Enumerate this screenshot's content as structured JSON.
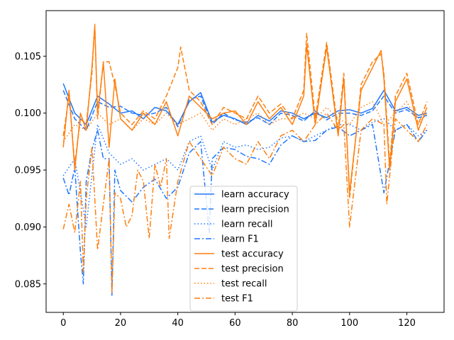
{
  "chart_data": {
    "type": "line",
    "xlim": [
      -6,
      133
    ],
    "ylim": [
      0.0825,
      0.109
    ],
    "x_ticks": [
      0,
      20,
      40,
      60,
      80,
      100,
      120
    ],
    "y_ticks": [
      0.085,
      0.09,
      0.095,
      0.1,
      0.105
    ],
    "x_tick_labels": [
      "0",
      "20",
      "40",
      "60",
      "80",
      "100",
      "120"
    ],
    "y_tick_labels": [
      "0.085",
      "0.090",
      "0.095",
      "0.100",
      "0.105"
    ],
    "grid": false,
    "legend_position": "bottom-center",
    "colors": {
      "learn": "#1f77ff",
      "test": "#ff7f0e",
      "axis": "#000000"
    },
    "legend": [
      {
        "label": "learn accuracy",
        "color": "#1f77ff",
        "style": "solid"
      },
      {
        "label": "learn precision",
        "color": "#1f77ff",
        "style": "dashed"
      },
      {
        "label": "learn recall",
        "color": "#1f77ff",
        "style": "dotted"
      },
      {
        "label": "learn F1",
        "color": "#1f77ff",
        "style": "dashdot"
      },
      {
        "label": "test accuracy",
        "color": "#ff7f0e",
        "style": "solid"
      },
      {
        "label": "test precision",
        "color": "#ff7f0e",
        "style": "dashed"
      },
      {
        "label": "test recall",
        "color": "#ff7f0e",
        "style": "dotted"
      },
      {
        "label": "test F1",
        "color": "#ff7f0e",
        "style": "dashdot"
      }
    ],
    "series": [
      {
        "label": "learn accuracy",
        "color": "#1f77ff",
        "style": "solid",
        "x": [
          0,
          4,
          8,
          12,
          16,
          20,
          24,
          28,
          32,
          36,
          40,
          44,
          48,
          52,
          56,
          60,
          64,
          68,
          72,
          76,
          80,
          84,
          88,
          92,
          96,
          100,
          104,
          108,
          112,
          116,
          120,
          124,
          127
        ],
        "y": [
          0.1026,
          0.1,
          0.099,
          0.1015,
          0.1008,
          0.1,
          0.1002,
          0.0995,
          0.1005,
          0.1002,
          0.099,
          0.101,
          0.1018,
          0.0992,
          0.0998,
          0.0995,
          0.099,
          0.0998,
          0.0993,
          0.1002,
          0.1,
          0.0995,
          0.1,
          0.0996,
          0.1002,
          0.1003,
          0.1,
          0.1004,
          0.102,
          0.1002,
          0.1005,
          0.0998,
          0.1
        ]
      },
      {
        "label": "learn precision",
        "color": "#1f77ff",
        "style": "dashed",
        "x": [
          0,
          4,
          8,
          12,
          16,
          20,
          24,
          28,
          32,
          36,
          40,
          44,
          48,
          52,
          56,
          60,
          64,
          68,
          72,
          76,
          80,
          84,
          88,
          92,
          96,
          100,
          104,
          108,
          112,
          116,
          120,
          124,
          127
        ],
        "y": [
          0.102,
          0.0995,
          0.0985,
          0.101,
          0.1005,
          0.1006,
          0.1,
          0.0998,
          0.1,
          0.1005,
          0.0988,
          0.1012,
          0.1015,
          0.099,
          0.1,
          0.0994,
          0.0992,
          0.0996,
          0.099,
          0.1,
          0.0998,
          0.0993,
          0.1002,
          0.0994,
          0.1,
          0.1,
          0.0998,
          0.1002,
          0.1015,
          0.1,
          0.1003,
          0.0996,
          0.0998
        ]
      },
      {
        "label": "learn recall",
        "color": "#1f77ff",
        "style": "dotted",
        "x": [
          0,
          4,
          8,
          12,
          16,
          20,
          24,
          28,
          32,
          36,
          40,
          44,
          48,
          52,
          56,
          60,
          64,
          68,
          72,
          76,
          80,
          84,
          88,
          92,
          96,
          100,
          104,
          108,
          112,
          116,
          120,
          124,
          127
        ],
        "y": [
          0.0945,
          0.096,
          0.09,
          0.099,
          0.0965,
          0.0955,
          0.096,
          0.095,
          0.0955,
          0.096,
          0.095,
          0.0975,
          0.098,
          0.095,
          0.0975,
          0.097,
          0.0972,
          0.0968,
          0.097,
          0.0978,
          0.098,
          0.0975,
          0.098,
          0.0985,
          0.099,
          0.099,
          0.0985,
          0.0992,
          0.0995,
          0.0985,
          0.099,
          0.098,
          0.0985
        ]
      },
      {
        "label": "learn F1",
        "color": "#1f77ff",
        "style": "dashdot",
        "x": [
          0,
          2,
          4,
          6,
          7,
          8,
          10,
          12,
          14,
          16,
          17,
          18,
          20,
          24,
          28,
          32,
          36,
          40,
          44,
          48,
          51,
          52,
          56,
          60,
          64,
          68,
          72,
          76,
          80,
          84,
          88,
          92,
          96,
          100,
          104,
          108,
          112,
          116,
          120,
          124,
          127
        ],
        "y": [
          0.0943,
          0.0928,
          0.0952,
          0.0878,
          0.085,
          0.094,
          0.0968,
          0.0985,
          0.096,
          0.096,
          0.084,
          0.095,
          0.0932,
          0.0922,
          0.0935,
          0.0942,
          0.0925,
          0.0935,
          0.0965,
          0.0975,
          0.0895,
          0.096,
          0.097,
          0.0968,
          0.0962,
          0.096,
          0.0955,
          0.0972,
          0.098,
          0.0975,
          0.0976,
          0.0985,
          0.0988,
          0.098,
          0.0985,
          0.099,
          0.093,
          0.0985,
          0.099,
          0.0975,
          0.0985
        ]
      },
      {
        "label": "test accuracy",
        "color": "#ff7f0e",
        "style": "solid",
        "x": [
          0,
          2,
          4,
          6,
          8,
          10,
          11,
          12,
          14,
          16,
          18,
          20,
          24,
          28,
          32,
          36,
          40,
          44,
          48,
          52,
          56,
          60,
          64,
          68,
          72,
          76,
          80,
          84,
          85,
          88,
          92,
          96,
          98,
          100,
          104,
          108,
          111,
          112,
          114,
          116,
          120,
          124,
          127
        ],
        "y": [
          0.097,
          0.102,
          0.095,
          0.1,
          0.0985,
          0.104,
          0.1076,
          0.1,
          0.1044,
          0.097,
          0.103,
          0.0995,
          0.0985,
          0.1,
          0.099,
          0.101,
          0.098,
          0.1015,
          0.1005,
          0.0995,
          0.1,
          0.1002,
          0.099,
          0.101,
          0.0995,
          0.1005,
          0.099,
          0.1015,
          0.106,
          0.099,
          0.1058,
          0.098,
          0.103,
          0.093,
          0.102,
          0.104,
          0.1055,
          0.103,
          0.095,
          0.101,
          0.103,
          0.0985,
          0.1005
        ]
      },
      {
        "label": "test precision",
        "color": "#ff7f0e",
        "style": "dashed",
        "x": [
          0,
          2,
          4,
          6,
          8,
          10,
          11,
          12,
          14,
          16,
          18,
          20,
          24,
          28,
          32,
          36,
          40,
          41,
          44,
          48,
          52,
          56,
          60,
          64,
          68,
          72,
          76,
          80,
          84,
          85,
          88,
          92,
          96,
          98,
          100,
          104,
          108,
          111,
          112,
          114,
          116,
          120,
          124,
          127
        ],
        "y": [
          0.098,
          0.1015,
          0.0955,
          0.0995,
          0.099,
          0.1035,
          0.1078,
          0.0995,
          0.1045,
          0.1045,
          0.1025,
          0.1,
          0.099,
          0.1002,
          0.0995,
          0.1015,
          0.104,
          0.1058,
          0.102,
          0.101,
          0.099,
          0.1005,
          0.1,
          0.0995,
          0.1015,
          0.1,
          0.1008,
          0.0995,
          0.102,
          0.107,
          0.0995,
          0.1062,
          0.0985,
          0.1035,
          0.0925,
          0.1025,
          0.1045,
          0.1052,
          0.1035,
          0.0955,
          0.1015,
          0.1035,
          0.099,
          0.101
        ]
      },
      {
        "label": "test recall",
        "color": "#ff7f0e",
        "style": "dotted",
        "x": [
          0,
          4,
          8,
          12,
          16,
          20,
          24,
          28,
          32,
          36,
          40,
          44,
          48,
          52,
          56,
          60,
          64,
          68,
          72,
          76,
          80,
          84,
          88,
          92,
          96,
          100,
          104,
          108,
          112,
          116,
          120,
          124,
          127
        ],
        "y": [
          0.0975,
          0.099,
          0.0985,
          0.1,
          0.099,
          0.0995,
          0.0985,
          0.0995,
          0.099,
          0.1,
          0.099,
          0.0995,
          0.1,
          0.0985,
          0.0995,
          0.099,
          0.0995,
          0.1,
          0.099,
          0.0995,
          0.0995,
          0.1,
          0.0995,
          0.1005,
          0.0995,
          0.099,
          0.1005,
          0.101,
          0.099,
          0.1,
          0.101,
          0.099,
          0.1
        ]
      },
      {
        "label": "test F1",
        "color": "#ff7f0e",
        "style": "dashdot",
        "x": [
          0,
          2,
          4,
          6,
          7,
          8,
          10,
          12,
          14,
          16,
          17,
          18,
          20,
          22,
          24,
          26,
          28,
          30,
          32,
          34,
          36,
          37,
          40,
          44,
          48,
          52,
          56,
          60,
          64,
          68,
          72,
          76,
          80,
          84,
          88,
          92,
          96,
          98,
          100,
          104,
          108,
          112,
          113,
          116,
          120,
          124,
          127
        ],
        "y": [
          0.0898,
          0.092,
          0.0895,
          0.094,
          0.086,
          0.0925,
          0.097,
          0.088,
          0.092,
          0.096,
          0.0842,
          0.093,
          0.0925,
          0.09,
          0.091,
          0.095,
          0.094,
          0.089,
          0.0955,
          0.0935,
          0.096,
          0.089,
          0.094,
          0.0975,
          0.096,
          0.0945,
          0.097,
          0.096,
          0.0955,
          0.0975,
          0.096,
          0.098,
          0.0985,
          0.0975,
          0.099,
          0.1,
          0.0985,
          0.099,
          0.09,
          0.0985,
          0.0995,
          0.099,
          0.092,
          0.0995,
          0.0985,
          0.0975,
          0.099
        ]
      }
    ]
  }
}
